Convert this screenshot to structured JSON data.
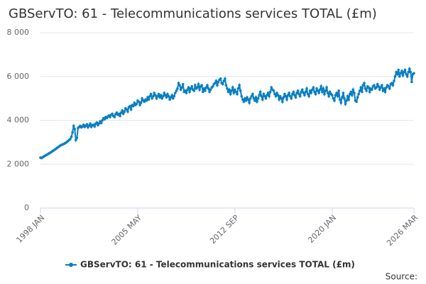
{
  "chart_data": {
    "type": "line",
    "title": "GBServTO: 61 - Telecommunications services TOTAL (£m)",
    "source": "Source:",
    "categories": [
      "1998 JAN",
      null,
      null,
      null,
      null,
      null,
      null,
      null,
      null,
      null,
      null,
      null,
      null,
      null,
      null,
      null,
      null,
      null,
      null,
      null,
      null,
      null,
      null,
      null,
      null,
      null,
      null,
      null,
      null,
      null,
      null,
      null,
      null,
      null,
      null,
      null,
      null,
      null,
      null,
      null,
      null,
      null,
      null,
      null,
      null,
      null,
      null,
      null,
      null,
      null,
      null,
      null,
      null,
      null,
      null,
      null,
      null,
      null,
      null,
      null,
      null,
      null,
      null,
      null,
      null,
      null,
      null,
      null,
      null,
      null,
      null,
      null,
      null,
      null,
      null,
      null,
      null,
      null,
      null,
      null,
      null,
      null,
      null,
      null,
      null,
      null,
      null,
      null,
      "2005 MAY",
      null,
      null,
      null,
      null,
      null,
      null,
      null,
      null,
      null,
      null,
      null,
      null,
      null,
      null,
      null,
      null,
      null,
      null,
      null,
      null,
      null,
      null,
      null,
      null,
      null,
      null,
      null,
      null,
      null,
      null,
      null,
      null,
      null,
      null,
      null,
      null,
      null,
      null,
      null,
      null,
      null,
      null,
      null,
      null,
      null,
      null,
      null,
      null,
      null,
      null,
      null,
      null,
      null,
      null,
      null,
      null,
      null,
      null,
      null,
      null,
      null,
      null,
      null,
      null,
      null,
      null,
      null,
      null,
      null,
      null,
      null,
      null,
      null,
      null,
      null,
      null,
      null,
      null,
      null,
      null,
      null,
      null,
      null,
      null,
      null,
      null,
      null,
      "2012 SEP",
      null,
      null,
      null,
      null,
      null,
      null,
      null,
      null,
      null,
      null,
      null,
      null,
      null,
      null,
      null,
      null,
      null,
      null,
      null,
      null,
      null,
      null,
      null,
      null,
      null,
      null,
      null,
      null,
      null,
      null,
      null,
      null,
      null,
      null,
      null,
      null,
      null,
      null,
      null,
      null,
      null,
      null,
      null,
      null,
      null,
      null,
      null,
      null,
      null,
      null,
      null,
      null,
      null,
      null,
      null,
      null,
      null,
      null,
      null,
      null,
      null,
      null,
      null,
      null,
      null,
      null,
      null,
      null,
      null,
      null,
      null,
      null,
      null,
      null,
      null,
      null,
      null,
      null,
      null,
      null,
      null,
      null,
      null,
      null,
      null,
      null,
      null,
      "2020 JAN",
      null,
      null,
      null,
      null,
      null,
      null,
      null,
      null,
      null,
      null,
      null,
      null,
      null,
      null,
      null,
      null,
      null,
      null,
      null,
      null,
      null,
      null,
      null,
      null,
      null,
      null,
      null,
      null,
      null,
      null,
      null,
      null,
      null,
      null,
      null,
      null,
      null,
      null,
      null,
      null,
      null,
      null,
      null,
      null,
      null,
      null,
      null,
      null,
      null,
      null,
      null,
      null,
      null,
      null,
      null,
      null,
      null,
      null,
      null,
      null,
      null,
      null,
      null,
      null,
      null,
      null,
      null,
      null,
      null,
      null,
      null,
      null,
      null,
      "2026 MAR"
    ],
    "series": [
      {
        "name": "GBServTO: 61 - Telecommunications services TOTAL (£m)",
        "color": "#0a7fc1",
        "values": [
          2300,
          2280,
          2320,
          2350,
          2380,
          2410,
          2440,
          2470,
          2500,
          2530,
          2560,
          2600,
          2630,
          2670,
          2700,
          2740,
          2780,
          2810,
          2850,
          2880,
          2900,
          2920,
          2950,
          2980,
          3020,
          3060,
          3110,
          3150,
          3250,
          3450,
          3750,
          3600,
          3100,
          3200,
          3650,
          3700,
          3750,
          3680,
          3720,
          3800,
          3700,
          3750,
          3820,
          3680,
          3760,
          3850,
          3700,
          3780,
          3800,
          3720,
          3850,
          3900,
          3780,
          3860,
          3950,
          3880,
          4000,
          4100,
          4050,
          4150,
          4100,
          4180,
          4220,
          4150,
          4250,
          4300,
          4200,
          4150,
          4280,
          4350,
          4250,
          4300,
          4200,
          4350,
          4450,
          4300,
          4400,
          4550,
          4500,
          4400,
          4600,
          4650,
          4500,
          4700,
          4650,
          4800,
          4700,
          4750,
          4900,
          4850,
          4700,
          4800,
          5000,
          4900,
          4850,
          4950,
          4900,
          5050,
          4950,
          5100,
          5200,
          5000,
          5100,
          5250,
          5150,
          5000,
          5100,
          5200,
          5050,
          5150,
          5000,
          5100,
          5250,
          5150,
          5050,
          5200,
          5100,
          4950,
          5050,
          5150,
          5000,
          5100,
          5250,
          5350,
          5450,
          5700,
          5600,
          5400,
          5500,
          5650,
          5300,
          5350,
          5250,
          5400,
          5500,
          5300,
          5450,
          5550,
          5400,
          5350,
          5600,
          5450,
          5500,
          5650,
          5400,
          5550,
          5600,
          5300,
          5450,
          5350,
          5500,
          5600,
          5450,
          5300,
          5400,
          5500,
          5550,
          5650,
          5700,
          5800,
          5600,
          5750,
          5850,
          5900,
          5700,
          5650,
          5800,
          5900,
          5600,
          5450,
          5300,
          5400,
          5200,
          5350,
          5500,
          5250,
          5400,
          5300,
          5200,
          5450,
          5600,
          5350,
          5100,
          4950,
          4850,
          5000,
          4900,
          5050,
          4950,
          4800,
          5000,
          5100,
          5200,
          5000,
          4900,
          5050,
          4850,
          5000,
          5150,
          5300,
          5100,
          4950,
          5200,
          5100,
          5000,
          5150,
          5250,
          5100,
          5300,
          5500,
          5400,
          5350,
          5200,
          5100,
          5250,
          5150,
          4950,
          5100,
          5000,
          4850,
          5050,
          5200,
          5100,
          4950,
          5150,
          5250,
          5100,
          5000,
          5200,
          5300,
          5150,
          5050,
          5250,
          5350,
          5200,
          5100,
          5300,
          5400,
          5250,
          5150,
          5300,
          5450,
          5200,
          5100,
          5350,
          5250,
          5400,
          5500,
          5300,
          5200,
          5450,
          5350,
          5250,
          5400,
          5550,
          5300,
          5450,
          5200,
          5350,
          5500,
          5250,
          5100,
          5300,
          5200,
          5150,
          5000,
          4900,
          5150,
          5250,
          5100,
          5350,
          4950,
          4800,
          5050,
          5250,
          5000,
          4750,
          4900,
          5100,
          4950,
          5200,
          5300,
          5150,
          5400,
          5250,
          4900,
          4850,
          5050,
          5200,
          5350,
          5500,
          5300,
          5600,
          5700,
          5450,
          5350,
          5550,
          5500,
          5300,
          5450,
          5400,
          5550,
          5600,
          5450,
          5500,
          5650,
          5550,
          5400,
          5500,
          5600,
          5350,
          5450,
          5300,
          5500,
          5600,
          5550,
          5450,
          5650,
          5700,
          5600,
          5800,
          6000,
          6200,
          6100,
          6300,
          6000,
          6150,
          6250,
          6050,
          6200,
          6300,
          6100,
          6000,
          6200,
          6350,
          6200,
          5750,
          6100,
          6150
        ]
      }
    ],
    "ylim": [
      0,
      8000
    ],
    "yticks": [
      0,
      {
        "value": 2000,
        "label": "2 000"
      },
      {
        "value": 4000,
        "label": "4 000"
      },
      {
        "value": 6000,
        "label": "6 000"
      },
      {
        "value": 8000,
        "label": "8 000"
      }
    ],
    "grid": true,
    "legend": "bottom"
  }
}
